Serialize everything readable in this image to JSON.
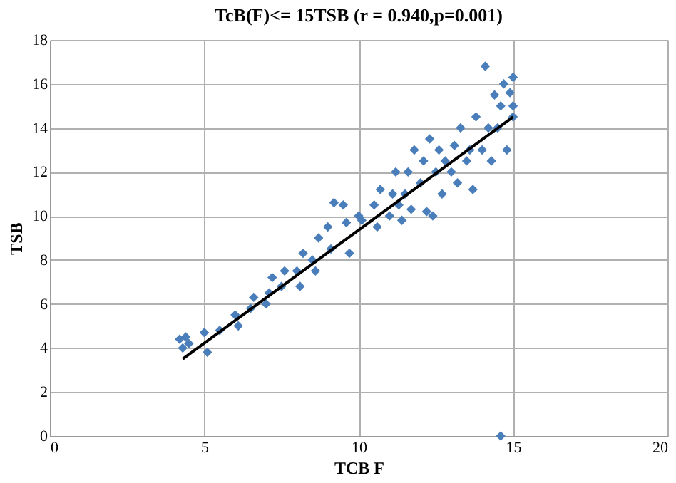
{
  "chart_data": {
    "type": "scatter",
    "title": "TcB(F)<= 15TSB  (r = 0.940,p=0.001)",
    "xlabel": "TCB F",
    "ylabel": "TSB",
    "xlim": [
      0,
      20
    ],
    "xticks": [
      0,
      5,
      10,
      15,
      20
    ],
    "ylim": [
      0,
      18
    ],
    "yticks": [
      0,
      2,
      4,
      6,
      8,
      10,
      12,
      14,
      16,
      18
    ],
    "grid": true,
    "series": [
      {
        "color": "#4a7ebb",
        "marker": "diamond",
        "x": [
          4.2,
          4.3,
          4.4,
          4.5,
          5.0,
          5.1,
          5.5,
          6.0,
          6.1,
          6.5,
          6.6,
          7.0,
          7.1,
          7.2,
          7.5,
          7.6,
          8.0,
          8.1,
          8.2,
          8.5,
          8.6,
          8.7,
          9.0,
          9.1,
          9.2,
          9.5,
          9.6,
          9.7,
          10.0,
          10.1,
          10.5,
          10.6,
          10.7,
          11.0,
          11.1,
          11.2,
          11.3,
          11.4,
          11.5,
          11.6,
          11.7,
          11.8,
          12.0,
          12.1,
          12.2,
          12.3,
          12.4,
          12.5,
          12.6,
          12.7,
          12.8,
          13.0,
          13.1,
          13.2,
          13.3,
          13.5,
          13.6,
          13.7,
          13.8,
          14.0,
          14.1,
          14.2,
          14.3,
          14.4,
          14.5,
          14.6,
          14.7,
          14.8,
          14.9,
          15.0,
          15.0,
          15.0,
          14.6
        ],
        "values": [
          4.4,
          4.0,
          4.5,
          4.2,
          4.7,
          3.8,
          4.8,
          5.5,
          5.0,
          5.8,
          6.3,
          6.0,
          6.5,
          7.2,
          6.8,
          7.5,
          7.5,
          6.8,
          8.3,
          8.0,
          7.5,
          9.0,
          9.5,
          8.5,
          10.6,
          10.5,
          9.7,
          8.3,
          10.0,
          9.8,
          10.5,
          9.5,
          11.2,
          10.0,
          11.0,
          12.0,
          10.5,
          9.8,
          11.0,
          12.0,
          10.3,
          13.0,
          11.5,
          12.5,
          10.2,
          13.5,
          10.0,
          12.0,
          13.0,
          11.0,
          12.5,
          12.0,
          13.2,
          11.5,
          14.0,
          12.5,
          13.0,
          11.2,
          14.5,
          13.0,
          16.8,
          14.0,
          12.5,
          15.5,
          14.0,
          15.0,
          16.0,
          13.0,
          15.6,
          15.0,
          16.3,
          14.5,
          0.0
        ]
      },
      {
        "type": "line",
        "marker": "none",
        "color": "#000000",
        "x": [
          4.3,
          15.0
        ],
        "values": [
          3.5,
          14.5
        ]
      }
    ]
  }
}
